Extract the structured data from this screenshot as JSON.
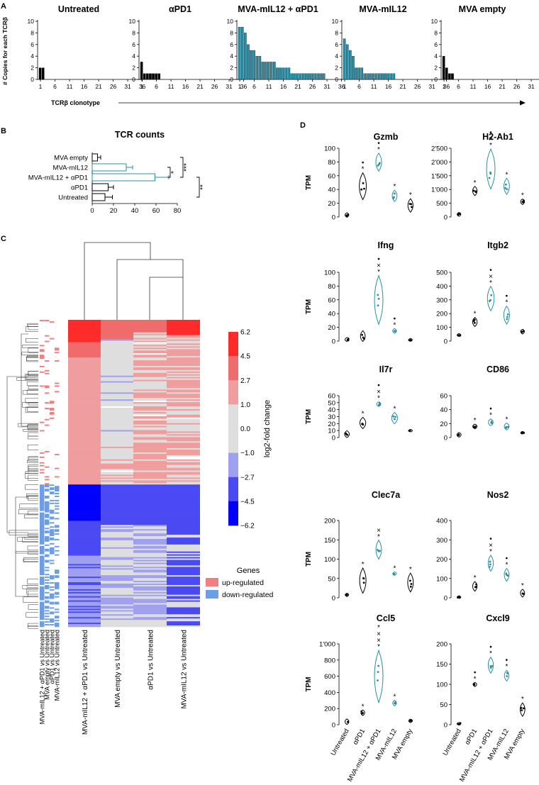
{
  "colors": {
    "black": "#000000",
    "teal": "#2a8fa6",
    "heat_pos_strong": "#ff2b2b",
    "heat_pos_mid": "#f06b6b",
    "heat_pos_light": "#ef9d9d",
    "heat_zero": "#dedede",
    "heat_neg_light": "#a0a0f0",
    "heat_neg_mid": "#4a4af5",
    "heat_neg_strong": "#0000ff",
    "genes_up": "#f07f7f",
    "genes_down": "#6a9ee8"
  },
  "panel_letters": [
    "A",
    "B",
    "C",
    "D"
  ],
  "chart_data": [
    {
      "id": "A",
      "type": "bar",
      "ylabel": "# Copies for each TCRβ",
      "xlabel": "TCRβ clonotype",
      "ylim": [
        0,
        10
      ],
      "yticks": [
        "0",
        "2",
        "4",
        "6",
        "8",
        "10"
      ],
      "xticks": [
        "1",
        "6",
        "11",
        "16",
        "21",
        "26",
        "31",
        "36"
      ],
      "xmax": 36,
      "series": [
        {
          "name": "Untreated",
          "color": "black",
          "values": [
            2,
            2
          ]
        },
        {
          "name": "αPD1",
          "color": "black",
          "values": [
            3,
            1,
            1,
            1,
            1,
            1,
            1
          ]
        },
        {
          "name": "MVA-mIL12 + αPD1",
          "color": "teal",
          "values": [
            9,
            9,
            8,
            6,
            5,
            5,
            4,
            4,
            3,
            3,
            3,
            3,
            3,
            2,
            2,
            2,
            2,
            2,
            1,
            1,
            1,
            1,
            1,
            1,
            1,
            1,
            1,
            1,
            1,
            1
          ]
        },
        {
          "name": "MVA-mIL12",
          "color": "teal",
          "values": [
            7,
            6,
            5,
            4,
            2,
            2,
            2,
            1,
            1,
            1,
            1,
            1,
            1,
            1,
            1,
            1,
            1,
            1
          ]
        },
        {
          "name": "MVA empty",
          "color": "black",
          "values": [
            4,
            2,
            1,
            1
          ]
        }
      ]
    },
    {
      "id": "B",
      "type": "bar",
      "orientation": "horizontal",
      "title": "TCR counts",
      "xlim": [
        0,
        80
      ],
      "xticks": [
        "0",
        "20",
        "40",
        "60",
        "80"
      ],
      "categories": [
        "MVA empty",
        "MVA-mIL12",
        "MVA-mIL12 + αPD1",
        "αPD1",
        "Untreated"
      ],
      "values": [
        5,
        32,
        59,
        15,
        12
      ],
      "errors": [
        3,
        6,
        13,
        5,
        7
      ],
      "colors": [
        "black",
        "teal",
        "teal",
        "black",
        "black"
      ],
      "significance": [
        {
          "label": "***",
          "between": [
            "MVA empty",
            "MVA-mIL12 + αPD1"
          ]
        },
        {
          "label": "*",
          "between": [
            "MVA-mIL12",
            "MVA-mIL12 + αPD1"
          ]
        },
        {
          "label": "**",
          "between": [
            "MVA-mIL12 + αPD1",
            "Untreated"
          ]
        }
      ]
    },
    {
      "id": "C",
      "type": "heatmap",
      "columns": [
        "MVA-mIL12 + αPD1 vs Untreated",
        "MVA empty vs Untreated",
        "αPD1 vs Untreated",
        "MVA-mIL12 vs Untreated"
      ],
      "annotation_columns": [
        "MVA-mIL12 + αPD1 vs Untreated",
        "MVA empty vs Untreated",
        "αPD1 vs Untreated",
        "MVA-mIL12 vs Untreated"
      ],
      "colorbar_label": "log2-fold change",
      "colorbar_ticks": [
        "6.2",
        "4.5",
        "2.7",
        "1.0",
        "0.0",
        "−1.0",
        "−2.7",
        "−4.5",
        "−6.2"
      ],
      "legend_title": "Genes",
      "legend_items": [
        "up-regulated",
        "down-regulated"
      ]
    },
    {
      "id": "D",
      "type": "scatter",
      "style": "violin",
      "ylabel": "TPM",
      "categories": [
        "Untreated",
        "αPD1",
        "MVA-mIL12 + αPD1",
        "MVA-mIL12",
        "MVA empty"
      ],
      "category_colors": [
        "black",
        "black",
        "teal",
        "teal",
        "black"
      ],
      "genes": [
        {
          "name": "Gzmb",
          "ylim": [
            0,
            100
          ],
          "yticks": [
            "0",
            "20",
            "40",
            "60",
            "80",
            "100"
          ],
          "means": [
            3,
            45,
            80,
            31,
            17
          ],
          "spreads": [
            2,
            12,
            8,
            5,
            6
          ],
          "marks": [
            [],
            [
              "•",
              "*"
            ],
            [
              "•",
              "*"
            ],
            [
              "*"
            ],
            [
              "*"
            ]
          ]
        },
        {
          "name": "H2-Ab1",
          "ylim": [
            0,
            2500
          ],
          "yticks": [
            "0",
            "500",
            "1'000",
            "1'500",
            "2'000",
            "2'500"
          ],
          "means": [
            100,
            950,
            1750,
            1120,
            560
          ],
          "spreads": [
            40,
            100,
            450,
            180,
            60
          ],
          "marks": [
            [],
            [
              "*"
            ],
            [
              "•",
              "×",
              "*"
            ],
            [
              "*"
            ],
            [
              "*"
            ]
          ]
        },
        {
          "name": "Ifng",
          "ylim": [
            0,
            100
          ],
          "yticks": [
            "0",
            "20",
            "40",
            "60",
            "80",
            "100"
          ],
          "means": [
            2,
            7,
            60,
            15,
            2
          ],
          "spreads": [
            2,
            5,
            22,
            2,
            1
          ],
          "marks": [
            [],
            [],
            [
              "•",
              "×",
              "*"
            ],
            [
              "•",
              "*"
            ],
            []
          ]
        },
        {
          "name": "Itgb2",
          "ylim": [
            0,
            500
          ],
          "yticks": [
            "0",
            "100",
            "200",
            "300",
            "400",
            "500"
          ],
          "means": [
            45,
            140,
            310,
            190,
            70
          ],
          "spreads": [
            5,
            20,
            55,
            40,
            10
          ],
          "marks": [
            [],
            [
              "*"
            ],
            [
              "•",
              "×",
              "*"
            ],
            [
              "•",
              "*"
            ],
            []
          ]
        },
        {
          "name": "Il7r",
          "ylim": [
            0,
            60
          ],
          "yticks": [
            "0",
            "10",
            "20",
            "30",
            "40",
            "50",
            "60"
          ],
          "means": [
            5,
            21,
            48,
            28,
            10
          ],
          "spreads": [
            3,
            5,
            2,
            5,
            1
          ],
          "marks": [
            [],
            [
              "*"
            ],
            [
              "•",
              "×",
              "*"
            ],
            [
              "*"
            ],
            []
          ]
        },
        {
          "name": "CD86",
          "ylim": [
            0,
            60
          ],
          "yticks": [
            "0",
            "20",
            "40",
            "60"
          ],
          "means": [
            4,
            16,
            22,
            16,
            7
          ],
          "spreads": [
            2,
            2,
            3,
            3,
            1
          ],
          "marks": [
            [],
            [
              "*"
            ],
            [
              "•",
              "*"
            ],
            [
              "*"
            ],
            []
          ]
        },
        {
          "name": "Clec7a",
          "ylim": [
            0,
            200
          ],
          "yticks": [
            "0",
            "50",
            "100",
            "150",
            "200"
          ],
          "means": [
            8,
            45,
            125,
            63,
            40
          ],
          "spreads": [
            2,
            20,
            15,
            2,
            15
          ],
          "marks": [
            [],
            [
              "*"
            ],
            [
              "×",
              "*"
            ],
            [
              "*"
            ],
            [
              "*"
            ]
          ]
        },
        {
          "name": "Nos2",
          "ylim": [
            0,
            400
          ],
          "yticks": [
            "0",
            "100",
            "200",
            "300",
            "400"
          ],
          "means": [
            3,
            60,
            180,
            120,
            25
          ],
          "spreads": [
            1,
            15,
            25,
            20,
            12
          ],
          "marks": [
            [],
            [
              "*"
            ],
            [
              "•",
              "×",
              "*"
            ],
            [
              "•",
              "*"
            ],
            [
              "*"
            ]
          ]
        },
        {
          "name": "Ccl5",
          "ylim": [
            0,
            1000
          ],
          "yticks": [
            "0",
            "200",
            "400",
            "600",
            "800",
            "1'000"
          ],
          "means": [
            40,
            150,
            600,
            270,
            50
          ],
          "spreads": [
            20,
            20,
            200,
            20,
            5
          ],
          "marks": [
            [],
            [
              "*"
            ],
            [
              "*",
              "×",
              "×",
              "*"
            ],
            [
              "*"
            ],
            []
          ]
        },
        {
          "name": "Cxcl9",
          "ylim": [
            0,
            200
          ],
          "yticks": [
            "0",
            "50",
            "100",
            "150",
            "200"
          ],
          "means": [
            2,
            100,
            148,
            122,
            38
          ],
          "spreads": [
            1,
            3,
            12,
            8,
            10
          ],
          "marks": [
            [],
            [
              "•",
              "*"
            ],
            [
              "•",
              "*"
            ],
            [
              "•",
              "*"
            ],
            [
              "*"
            ]
          ]
        }
      ]
    }
  ]
}
